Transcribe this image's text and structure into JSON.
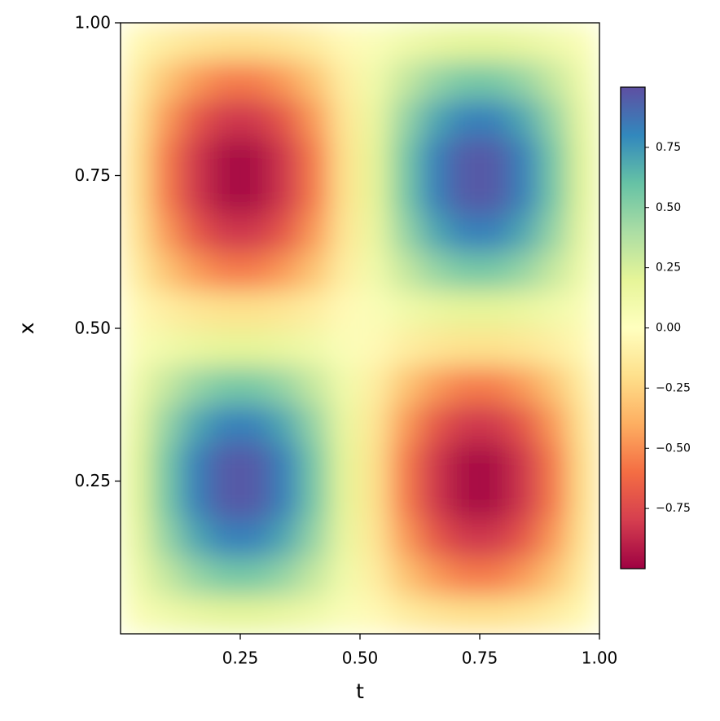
{
  "chart_data": {
    "type": "heatmap",
    "colormap": "Spectral",
    "x_label": "t",
    "y_label": "x",
    "xlim": [
      0,
      1
    ],
    "ylim": [
      0,
      1
    ],
    "xticks": [
      0.25,
      {
        "value": 0.5,
        "label": "0.50"
      },
      0.75,
      {
        "value": 1,
        "label": "1.00"
      }
    ],
    "yticks": [
      0.25,
      {
        "value": 0.5,
        "label": "0.50"
      },
      0.75,
      {
        "value": 1,
        "label": "1.00"
      }
    ],
    "clim": [
      -1,
      1
    ],
    "cticks": [
      {
        "value": -0.75,
        "label": "−0.75"
      },
      {
        "value": -0.5,
        "label": "−0.50"
      },
      {
        "value": -0.25,
        "label": "−0.25"
      },
      {
        "value": 0,
        "label": "0.00"
      },
      0.25,
      {
        "value": 0.5,
        "label": "0.50"
      },
      0.75
    ],
    "x": [
      0.03125,
      0.09375,
      0.15625,
      0.21875,
      0.28125,
      0.34375,
      0.40625,
      0.46875,
      0.53125,
      0.59375,
      0.65625,
      0.71875,
      0.78125,
      0.84375,
      0.90625,
      0.96875
    ],
    "y": [
      0.03125,
      0.09375,
      0.15625,
      0.21875,
      0.28125,
      0.34375,
      0.40625,
      0.46875,
      0.53125,
      0.59375,
      0.65625,
      0.71875,
      0.78125,
      0.84375,
      0.90625,
      0.96875
    ],
    "z": [
      [
        0.04,
        0.11,
        0.16,
        0.19,
        0.19,
        0.16,
        0.11,
        0.04,
        -0.04,
        -0.11,
        -0.16,
        -0.19,
        -0.19,
        -0.16,
        -0.11,
        -0.04
      ],
      [
        0.11,
        0.31,
        0.46,
        0.55,
        0.55,
        0.46,
        0.31,
        0.11,
        -0.11,
        -0.31,
        -0.46,
        -0.55,
        -0.55,
        -0.46,
        -0.31,
        -0.11
      ],
      [
        0.16,
        0.46,
        0.69,
        0.82,
        0.82,
        0.69,
        0.46,
        0.16,
        -0.16,
        -0.46,
        -0.69,
        -0.82,
        -0.82,
        -0.69,
        -0.46,
        -0.16
      ],
      [
        0.19,
        0.55,
        0.82,
        0.96,
        0.96,
        0.82,
        0.55,
        0.19,
        -0.19,
        -0.55,
        -0.82,
        -0.96,
        -0.96,
        -0.82,
        -0.55,
        -0.19
      ],
      [
        0.19,
        0.55,
        0.82,
        0.96,
        0.96,
        0.82,
        0.55,
        0.19,
        -0.19,
        -0.55,
        -0.82,
        -0.96,
        -0.96,
        -0.82,
        -0.55,
        -0.19
      ],
      [
        0.16,
        0.46,
        0.69,
        0.82,
        0.82,
        0.69,
        0.46,
        0.16,
        -0.16,
        -0.46,
        -0.69,
        -0.82,
        -0.82,
        -0.69,
        -0.46,
        -0.16
      ],
      [
        0.11,
        0.31,
        0.46,
        0.55,
        0.55,
        0.46,
        0.31,
        0.11,
        -0.11,
        -0.31,
        -0.46,
        -0.55,
        -0.55,
        -0.46,
        -0.31,
        -0.11
      ],
      [
        0.04,
        0.11,
        0.16,
        0.19,
        0.19,
        0.16,
        0.11,
        0.04,
        -0.04,
        -0.11,
        -0.16,
        -0.19,
        -0.19,
        -0.16,
        -0.11,
        -0.04
      ],
      [
        -0.04,
        -0.11,
        -0.16,
        -0.19,
        -0.19,
        -0.16,
        -0.11,
        -0.04,
        0.04,
        0.11,
        0.16,
        0.19,
        0.19,
        0.16,
        0.11,
        0.04
      ],
      [
        -0.11,
        -0.31,
        -0.46,
        -0.55,
        -0.55,
        -0.46,
        -0.31,
        -0.11,
        0.11,
        0.31,
        0.46,
        0.55,
        0.55,
        0.46,
        0.31,
        0.11
      ],
      [
        -0.16,
        -0.46,
        -0.69,
        -0.82,
        -0.82,
        -0.69,
        -0.46,
        -0.16,
        0.16,
        0.46,
        0.69,
        0.82,
        0.82,
        0.69,
        0.46,
        0.16
      ],
      [
        -0.19,
        -0.55,
        -0.82,
        -0.96,
        -0.96,
        -0.82,
        -0.55,
        -0.19,
        0.19,
        0.55,
        0.82,
        0.96,
        0.96,
        0.82,
        0.55,
        0.19
      ],
      [
        -0.19,
        -0.55,
        -0.82,
        -0.96,
        -0.96,
        -0.82,
        -0.55,
        -0.19,
        0.19,
        0.55,
        0.82,
        0.96,
        0.96,
        0.82,
        0.55,
        0.19
      ],
      [
        -0.16,
        -0.46,
        -0.69,
        -0.82,
        -0.82,
        -0.69,
        -0.46,
        -0.16,
        0.16,
        0.46,
        0.69,
        0.82,
        0.82,
        0.69,
        0.46,
        0.16
      ],
      [
        -0.11,
        -0.31,
        -0.46,
        -0.55,
        -0.55,
        -0.46,
        -0.31,
        -0.11,
        0.11,
        0.31,
        0.46,
        0.55,
        0.55,
        0.46,
        0.31,
        0.11
      ],
      [
        -0.04,
        -0.11,
        -0.16,
        -0.19,
        -0.19,
        -0.16,
        -0.11,
        -0.04,
        0.04,
        0.11,
        0.16,
        0.19,
        0.19,
        0.16,
        0.11,
        0.04
      ]
    ]
  }
}
